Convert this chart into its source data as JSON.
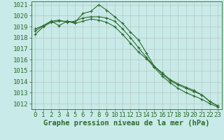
{
  "title": "Graphe pression niveau de la mer (hPa)",
  "background_color": "#c8eae8",
  "grid_color": "#b8c8c0",
  "line_color": "#2d6b2d",
  "x_values": [
    0,
    1,
    2,
    3,
    4,
    5,
    6,
    7,
    8,
    9,
    10,
    11,
    12,
    13,
    14,
    15,
    16,
    17,
    18,
    19,
    20,
    21,
    22,
    23
  ],
  "series": [
    [
      1018.6,
      1019.1,
      1019.5,
      1019.1,
      1019.5,
      1019.4,
      1020.2,
      1020.4,
      1021.0,
      1020.5,
      1019.9,
      1019.3,
      1018.5,
      1017.8,
      1016.6,
      1015.4,
      1014.8,
      1014.2,
      1013.8,
      1013.5,
      1013.2,
      1012.8,
      1012.2,
      1011.8
    ],
    [
      1018.8,
      1019.1,
      1019.5,
      1019.6,
      1019.4,
      1019.5,
      1019.8,
      1019.9,
      1019.9,
      1019.8,
      1019.5,
      1018.8,
      1018.0,
      1017.1,
      1016.2,
      1015.4,
      1014.7,
      1014.1,
      1013.7,
      1013.4,
      1013.1,
      1012.8,
      1012.2,
      1011.8
    ],
    [
      1018.3,
      1019.0,
      1019.4,
      1019.5,
      1019.5,
      1019.3,
      1019.5,
      1019.7,
      1019.6,
      1019.4,
      1019.0,
      1018.3,
      1017.5,
      1016.7,
      1016.1,
      1015.3,
      1014.5,
      1013.9,
      1013.4,
      1013.0,
      1012.7,
      1012.4,
      1012.0,
      1011.7
    ]
  ],
  "ylim_min": 1011.5,
  "ylim_max": 1021.3,
  "yticks": [
    1012,
    1013,
    1014,
    1015,
    1016,
    1017,
    1018,
    1019,
    1020,
    1021
  ],
  "tick_fontsize": 6.5,
  "title_fontsize": 7.5,
  "figsize": [
    3.2,
    2.0
  ],
  "dpi": 100
}
